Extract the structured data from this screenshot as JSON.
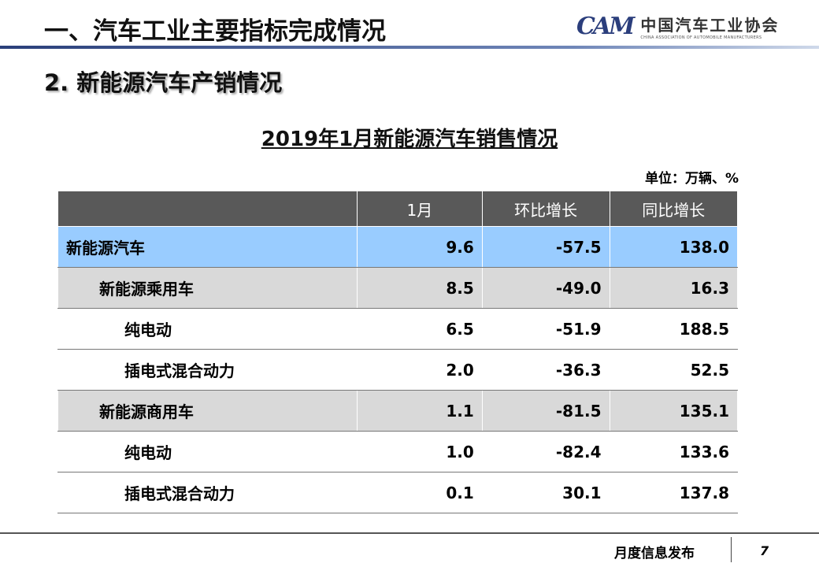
{
  "header": {
    "title": "一、汽车工业主要指标完成情况",
    "logo_cn": "中国汽车工业协会",
    "logo_en": "CHINA ASSOCIATION OF AUTOMOBILE MANUFACTURERS",
    "logo_mark": "CAM"
  },
  "subtitle": "2. 新能源汽车产销情况",
  "table_title": "2019年1月新能源汽车销售情况",
  "unit": "单位：万辆、%",
  "columns": [
    "",
    "1月",
    "环比增长",
    "同比增长"
  ],
  "rows": [
    {
      "label": "新能源汽车",
      "level": 0,
      "values": [
        "9.6",
        "-57.5",
        "138.0"
      ]
    },
    {
      "label": "新能源乘用车",
      "level": 1,
      "values": [
        "8.5",
        "-49.0",
        "16.3"
      ]
    },
    {
      "label": "纯电动",
      "level": 2,
      "values": [
        "6.5",
        "-51.9",
        "188.5"
      ]
    },
    {
      "label": "插电式混合动力",
      "level": 2,
      "values": [
        "2.0",
        "-36.3",
        "52.5"
      ]
    },
    {
      "label": "新能源商用车",
      "level": 1,
      "values": [
        "1.1",
        "-81.5",
        "135.1"
      ]
    },
    {
      "label": "纯电动",
      "level": 2,
      "values": [
        "1.0",
        "-82.4",
        "133.6"
      ]
    },
    {
      "label": "插电式混合动力",
      "level": 2,
      "values": [
        "0.1",
        "30.1",
        "137.8"
      ]
    }
  ],
  "footer": {
    "label": "月度信息发布",
    "page": "7"
  }
}
